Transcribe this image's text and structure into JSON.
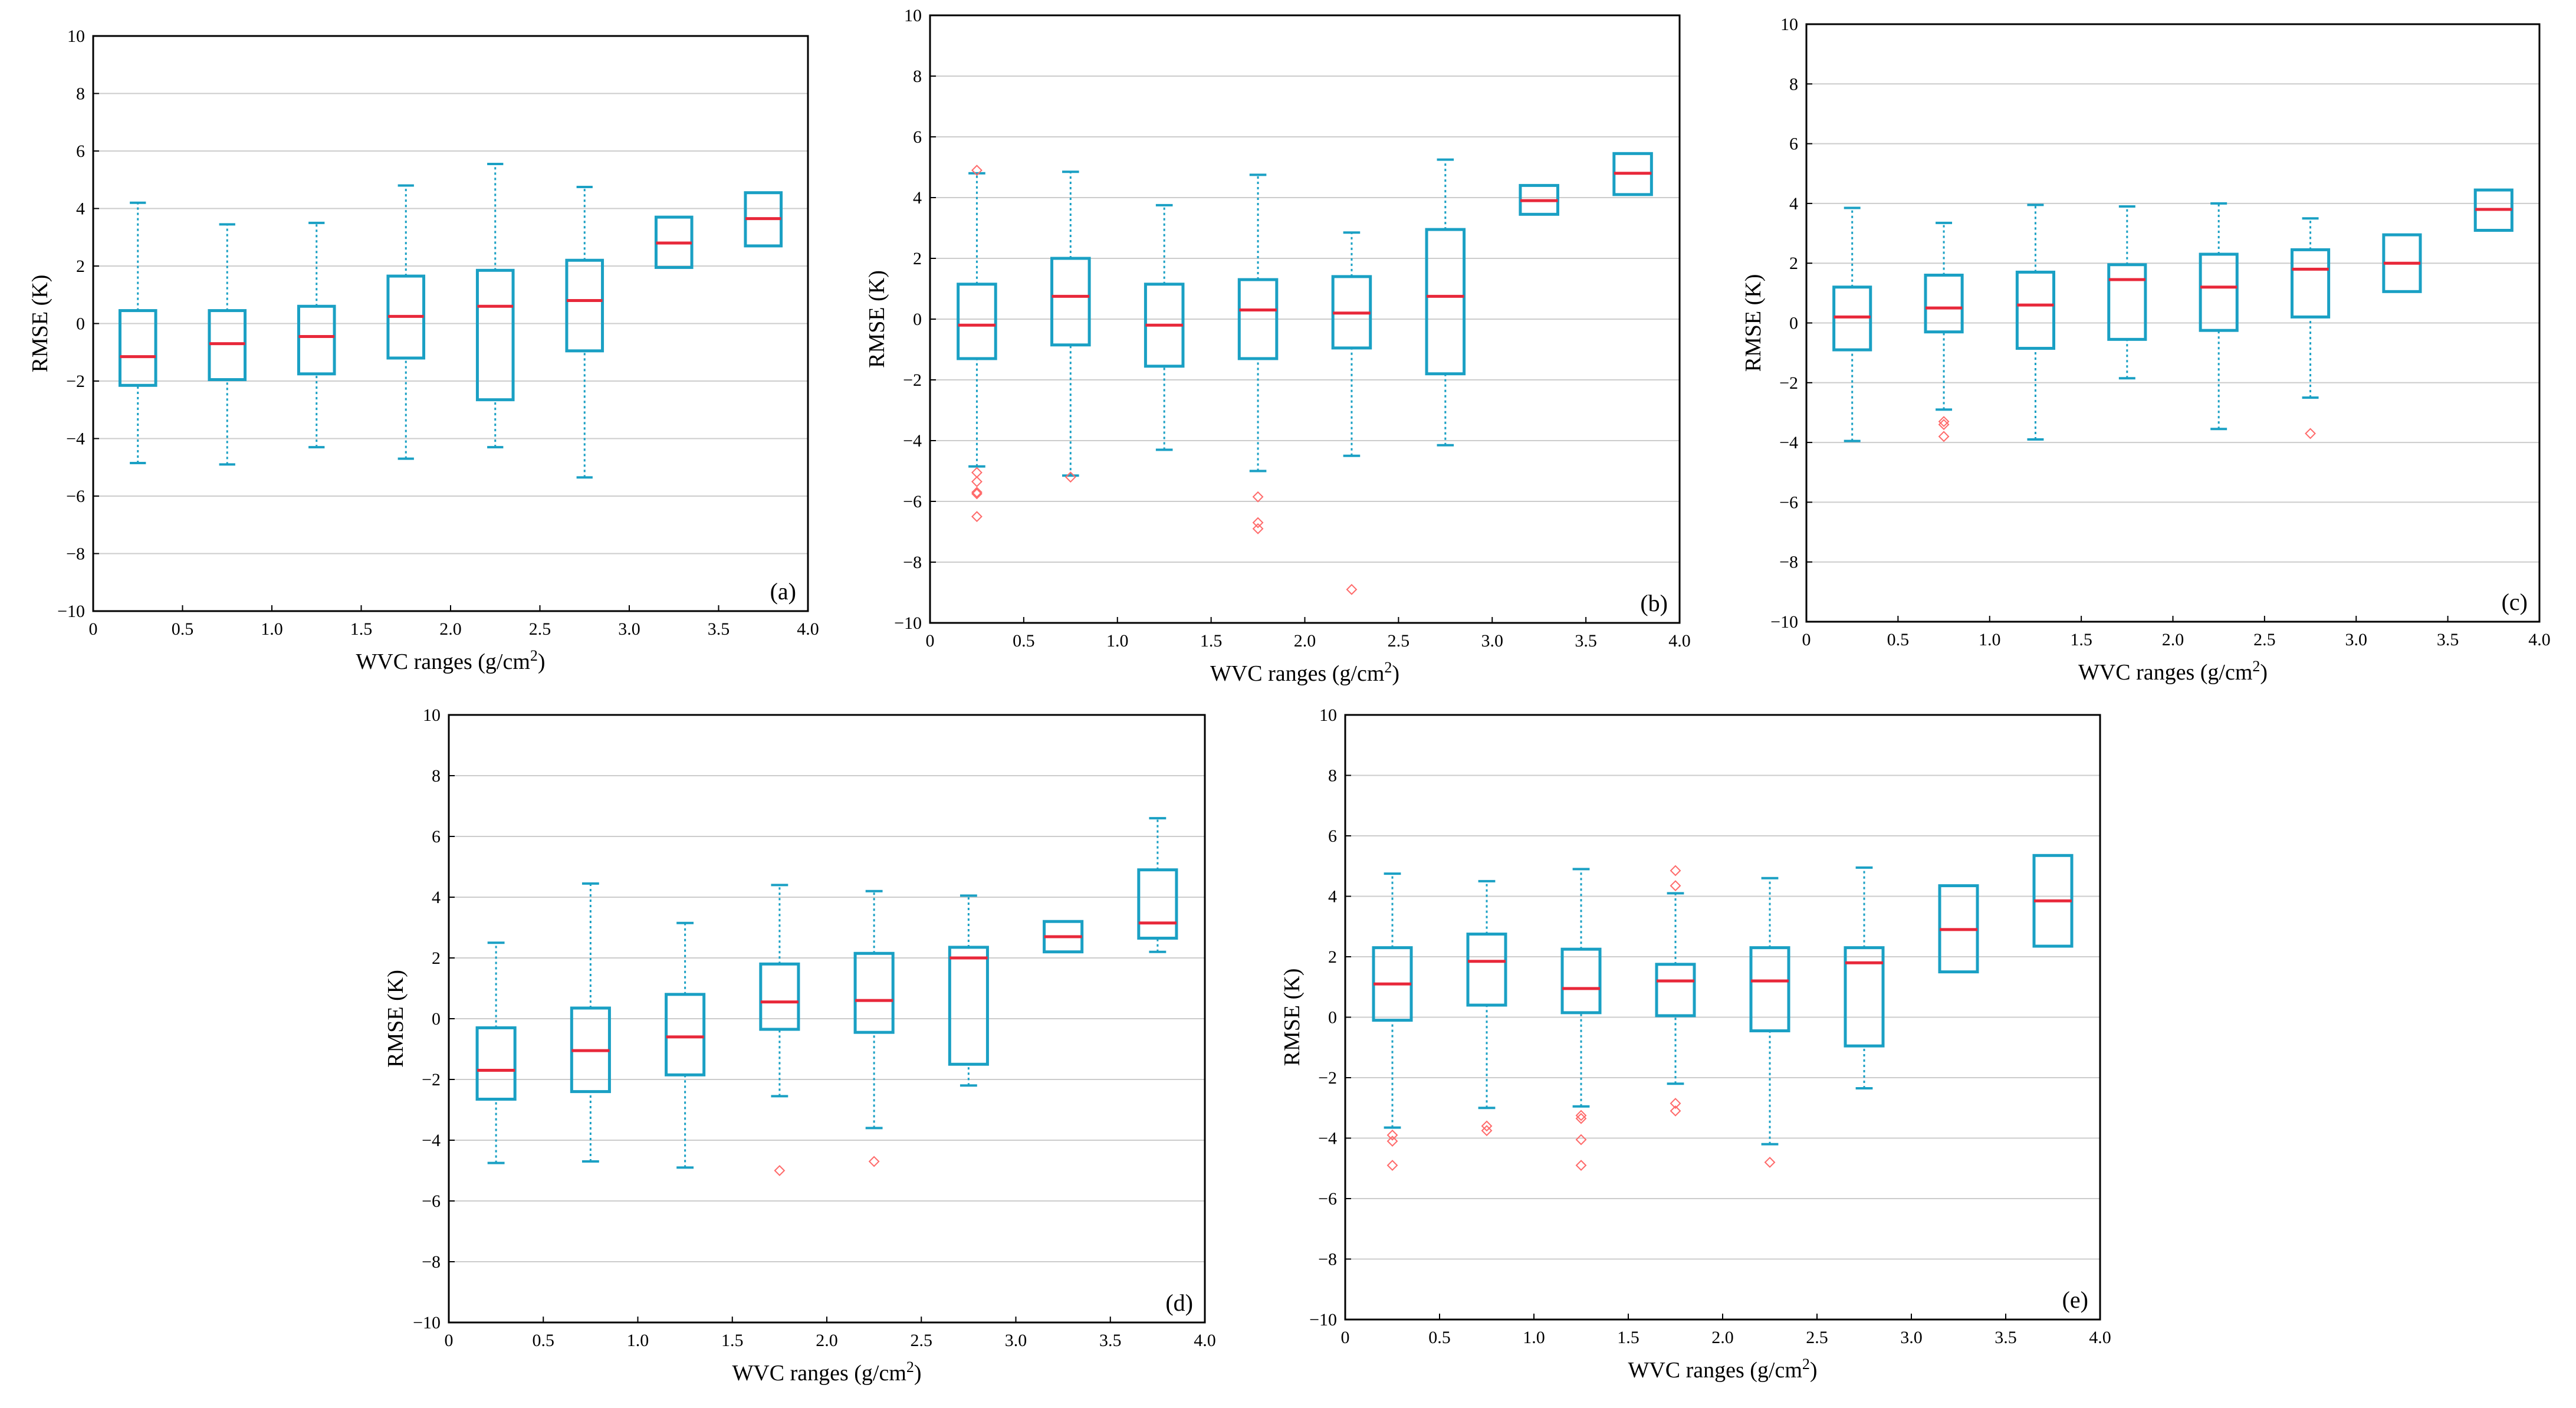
{
  "chart_data": [
    {
      "type": "box",
      "panel_label": "(a)",
      "xlabel": "WVC ranges (g/cm",
      "xlabel_sup": "2",
      "xlabel_tail": ")",
      "ylabel": "RMSE (K)",
      "xlim": [
        0,
        4.0
      ],
      "ylim": [
        -10,
        10
      ],
      "xticks": [
        "0",
        "0.5",
        "1.0",
        "1.5",
        "2.0",
        "2.5",
        "3.0",
        "3.5",
        "4.0"
      ],
      "yticks": [
        "−10",
        "−8",
        "−6",
        "−4",
        "−2",
        "0",
        "2",
        "4",
        "6",
        "8",
        "10"
      ],
      "grid": true,
      "boxes": [
        {
          "x": 0.25,
          "min": -4.85,
          "q1": -2.15,
          "median": -1.15,
          "q3": 0.45,
          "max": 4.2,
          "outliers": []
        },
        {
          "x": 0.75,
          "min": -4.9,
          "q1": -1.95,
          "median": -0.7,
          "q3": 0.45,
          "max": 3.45,
          "outliers": []
        },
        {
          "x": 1.25,
          "min": -4.3,
          "q1": -1.75,
          "median": -0.45,
          "q3": 0.6,
          "max": 3.5,
          "outliers": []
        },
        {
          "x": 1.75,
          "min": -4.7,
          "q1": -1.2,
          "median": 0.25,
          "q3": 1.65,
          "max": 4.8,
          "outliers": []
        },
        {
          "x": 2.25,
          "min": -4.3,
          "q1": -2.65,
          "median": 0.6,
          "q3": 1.85,
          "max": 5.55,
          "outliers": []
        },
        {
          "x": 2.75,
          "min": -5.35,
          "q1": -0.95,
          "median": 0.8,
          "q3": 2.2,
          "max": 4.75,
          "outliers": []
        },
        {
          "x": 3.25,
          "min": 1.95,
          "q1": 1.95,
          "median": 2.8,
          "q3": 3.7,
          "max": 3.7,
          "outliers": []
        },
        {
          "x": 3.75,
          "min": 2.7,
          "q1": 2.7,
          "median": 3.65,
          "q3": 4.55,
          "max": 4.55,
          "outliers": []
        }
      ]
    },
    {
      "type": "box",
      "panel_label": "(b)",
      "xlabel": "WVC ranges (g/cm",
      "xlabel_sup": "2",
      "xlabel_tail": ")",
      "ylabel": "RMSE (K)",
      "xlim": [
        0,
        4.0
      ],
      "ylim": [
        -10,
        10
      ],
      "xticks": [
        "0",
        "0.5",
        "1.0",
        "1.5",
        "2.0",
        "2.5",
        "3.0",
        "3.5",
        "4.0"
      ],
      "yticks": [
        "−10",
        "−8",
        "−6",
        "−4",
        "−2",
        "0",
        "2",
        "4",
        "6",
        "8",
        "10"
      ],
      "grid": true,
      "boxes": [
        {
          "x": 0.25,
          "min": -4.85,
          "q1": -1.3,
          "median": -0.2,
          "q3": 1.15,
          "max": 4.8,
          "outliers": [
            4.9,
            -5.05,
            -5.35,
            -5.7,
            -5.75,
            -6.5
          ]
        },
        {
          "x": 0.75,
          "min": -5.15,
          "q1": -0.85,
          "median": 0.75,
          "q3": 2.0,
          "max": 4.85,
          "outliers": [
            -5.2
          ]
        },
        {
          "x": 1.25,
          "min": -4.3,
          "q1": -1.55,
          "median": -0.2,
          "q3": 1.15,
          "max": 3.75,
          "outliers": []
        },
        {
          "x": 1.75,
          "min": -5.0,
          "q1": -1.3,
          "median": 0.3,
          "q3": 1.3,
          "max": 4.75,
          "outliers": [
            -5.85,
            -6.7,
            -6.9
          ]
        },
        {
          "x": 2.25,
          "min": -4.5,
          "q1": -0.95,
          "median": 0.2,
          "q3": 1.4,
          "max": 2.85,
          "outliers": [
            -8.9
          ]
        },
        {
          "x": 2.75,
          "min": -4.15,
          "q1": -1.8,
          "median": 0.75,
          "q3": 2.95,
          "max": 5.25,
          "outliers": []
        },
        {
          "x": 3.25,
          "min": 3.45,
          "q1": 3.45,
          "median": 3.9,
          "q3": 4.4,
          "max": 4.4,
          "outliers": []
        },
        {
          "x": 3.75,
          "min": 4.1,
          "q1": 4.1,
          "median": 4.8,
          "q3": 5.45,
          "max": 5.45,
          "outliers": []
        }
      ]
    },
    {
      "type": "box",
      "panel_label": "(c)",
      "xlabel": "WVC ranges (g/cm",
      "xlabel_sup": "2",
      "xlabel_tail": ")",
      "ylabel": "RMSE (K)",
      "xlim": [
        0,
        4.0
      ],
      "ylim": [
        -10,
        10
      ],
      "xticks": [
        "0",
        "0.5",
        "1.0",
        "1.5",
        "2.0",
        "2.5",
        "3.0",
        "3.5",
        "4.0"
      ],
      "yticks": [
        "−10",
        "−8",
        "−6",
        "−4",
        "−2",
        "0",
        "2",
        "4",
        "6",
        "8",
        "10"
      ],
      "grid": true,
      "boxes": [
        {
          "x": 0.25,
          "min": -3.95,
          "q1": -0.9,
          "median": 0.2,
          "q3": 1.2,
          "max": 3.85,
          "outliers": []
        },
        {
          "x": 0.75,
          "min": -2.9,
          "q1": -0.3,
          "median": 0.5,
          "q3": 1.6,
          "max": 3.35,
          "outliers": [
            -3.3,
            -3.4,
            -3.8
          ]
        },
        {
          "x": 1.25,
          "min": -3.9,
          "q1": -0.85,
          "median": 0.6,
          "q3": 1.7,
          "max": 3.95,
          "outliers": []
        },
        {
          "x": 1.75,
          "min": -1.85,
          "q1": -0.55,
          "median": 1.45,
          "q3": 1.95,
          "max": 3.9,
          "outliers": []
        },
        {
          "x": 2.25,
          "min": -3.55,
          "q1": -0.25,
          "median": 1.2,
          "q3": 2.3,
          "max": 4.0,
          "outliers": []
        },
        {
          "x": 2.75,
          "min": -2.5,
          "q1": 0.2,
          "median": 1.8,
          "q3": 2.45,
          "max": 3.5,
          "outliers": [
            -3.7
          ]
        },
        {
          "x": 3.25,
          "min": 1.05,
          "q1": 1.05,
          "median": 2.0,
          "q3": 2.95,
          "max": 2.95,
          "outliers": []
        },
        {
          "x": 3.75,
          "min": 3.1,
          "q1": 3.1,
          "median": 3.8,
          "q3": 4.45,
          "max": 4.45,
          "outliers": []
        }
      ]
    },
    {
      "type": "box",
      "panel_label": "(d)",
      "xlabel": "WVC ranges (g/cm",
      "xlabel_sup": "2",
      "xlabel_tail": ")",
      "ylabel": "RMSE (K)",
      "xlim": [
        0,
        4.0
      ],
      "ylim": [
        -10,
        10
      ],
      "xticks": [
        "0",
        "0.5",
        "1.0",
        "1.5",
        "2.0",
        "2.5",
        "3.0",
        "3.5",
        "4.0"
      ],
      "yticks": [
        "−10",
        "−8",
        "−6",
        "−4",
        "−2",
        "0",
        "2",
        "4",
        "6",
        "8",
        "10"
      ],
      "grid": true,
      "boxes": [
        {
          "x": 0.25,
          "min": -4.75,
          "q1": -2.65,
          "median": -1.7,
          "q3": -0.3,
          "max": 2.5,
          "outliers": []
        },
        {
          "x": 0.75,
          "min": -4.7,
          "q1": -2.4,
          "median": -1.05,
          "q3": 0.35,
          "max": 4.45,
          "outliers": []
        },
        {
          "x": 1.25,
          "min": -4.9,
          "q1": -1.85,
          "median": -0.6,
          "q3": 0.8,
          "max": 3.15,
          "outliers": []
        },
        {
          "x": 1.75,
          "min": -2.55,
          "q1": -0.35,
          "median": 0.55,
          "q3": 1.8,
          "max": 4.4,
          "outliers": [
            -5.0
          ]
        },
        {
          "x": 2.25,
          "min": -3.6,
          "q1": -0.45,
          "median": 0.6,
          "q3": 2.15,
          "max": 4.2,
          "outliers": [
            -4.7
          ]
        },
        {
          "x": 2.75,
          "min": -2.2,
          "q1": -1.5,
          "median": 2.0,
          "q3": 2.35,
          "max": 4.05,
          "outliers": []
        },
        {
          "x": 3.25,
          "min": 2.2,
          "q1": 2.2,
          "median": 2.7,
          "q3": 3.2,
          "max": 3.2,
          "outliers": []
        },
        {
          "x": 3.75,
          "min": 2.2,
          "q1": 2.65,
          "median": 3.15,
          "q3": 4.9,
          "max": 6.6,
          "outliers": []
        }
      ]
    },
    {
      "type": "box",
      "panel_label": "(e)",
      "xlabel": "WVC ranges (g/cm",
      "xlabel_sup": "2",
      "xlabel_tail": ")",
      "ylabel": "RMSE (K)",
      "xlim": [
        0,
        4.0
      ],
      "ylim": [
        -10,
        10
      ],
      "xticks": [
        "0",
        "0.5",
        "1.0",
        "1.5",
        "2.0",
        "2.5",
        "3.0",
        "3.5",
        "4.0"
      ],
      "yticks": [
        "−10",
        "−8",
        "−6",
        "−4",
        "−2",
        "0",
        "2",
        "4",
        "6",
        "8",
        "10"
      ],
      "grid": true,
      "boxes": [
        {
          "x": 0.25,
          "min": -3.65,
          "q1": -0.1,
          "median": 1.1,
          "q3": 2.3,
          "max": 4.75,
          "outliers": [
            -3.9,
            -4.1,
            -4.9
          ]
        },
        {
          "x": 0.75,
          "min": -3.0,
          "q1": 0.4,
          "median": 1.85,
          "q3": 2.75,
          "max": 4.5,
          "outliers": [
            -3.6,
            -3.75
          ]
        },
        {
          "x": 1.25,
          "min": -2.95,
          "q1": 0.15,
          "median": 0.95,
          "q3": 2.25,
          "max": 4.9,
          "outliers": [
            -3.25,
            -3.35,
            -4.05,
            -4.9
          ]
        },
        {
          "x": 1.75,
          "min": -2.2,
          "q1": 0.05,
          "median": 1.2,
          "q3": 1.75,
          "max": 4.1,
          "outliers": [
            4.85,
            4.35,
            -2.85,
            -3.1
          ]
        },
        {
          "x": 2.25,
          "min": -4.2,
          "q1": -0.45,
          "median": 1.2,
          "q3": 2.3,
          "max": 4.6,
          "outliers": [
            -4.8
          ]
        },
        {
          "x": 2.75,
          "min": -2.35,
          "q1": -0.95,
          "median": 1.8,
          "q3": 2.3,
          "max": 4.95,
          "outliers": []
        },
        {
          "x": 3.25,
          "min": 1.5,
          "q1": 1.5,
          "median": 2.9,
          "q3": 4.35,
          "max": 4.35,
          "outliers": []
        },
        {
          "x": 3.75,
          "min": 2.35,
          "q1": 2.35,
          "median": 3.85,
          "q3": 5.35,
          "max": 5.35,
          "outliers": []
        }
      ]
    }
  ],
  "colors": {
    "box": "#1aa0c4",
    "median": "#e8283a",
    "outlier": "#ff6a6a",
    "grid": "#cccccc",
    "axis": "#000000"
  }
}
